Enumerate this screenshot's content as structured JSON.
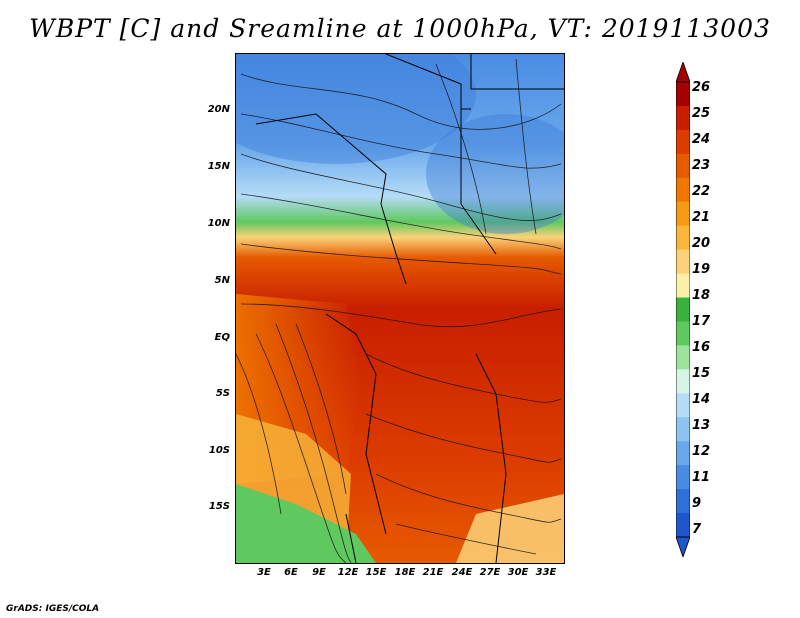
{
  "title": "WBPT [C] and Sreamline at 1000hPa, VT: 2019113003",
  "y_ticks": [
    "20N",
    "15N",
    "10N",
    "5N",
    "EQ",
    "5S",
    "10S",
    "15S"
  ],
  "x_ticks": [
    "3E",
    "6E",
    "9E",
    "12E",
    "15E",
    "18E",
    "21E",
    "24E",
    "27E",
    "30E",
    "33E"
  ],
  "colorbar": {
    "labels": [
      "26",
      "25",
      "24",
      "23",
      "22",
      "21",
      "20",
      "19",
      "18",
      "17",
      "16",
      "15",
      "14",
      "13",
      "12",
      "11",
      "9",
      "7"
    ],
    "colors": [
      "#a50000",
      "#c81e00",
      "#dc3c00",
      "#e65a00",
      "#f07800",
      "#f59a14",
      "#f8b73c",
      "#fbd27a",
      "#fcefaa",
      "#37b23c",
      "#5fc85f",
      "#9ee39b",
      "#d6f5e6",
      "#b5dcf7",
      "#8ec4f2",
      "#6aa8eb",
      "#4a8ce3",
      "#2e6fd8",
      "#1e56cc"
    ]
  },
  "footer": "GrADS: IGES/COLA"
}
